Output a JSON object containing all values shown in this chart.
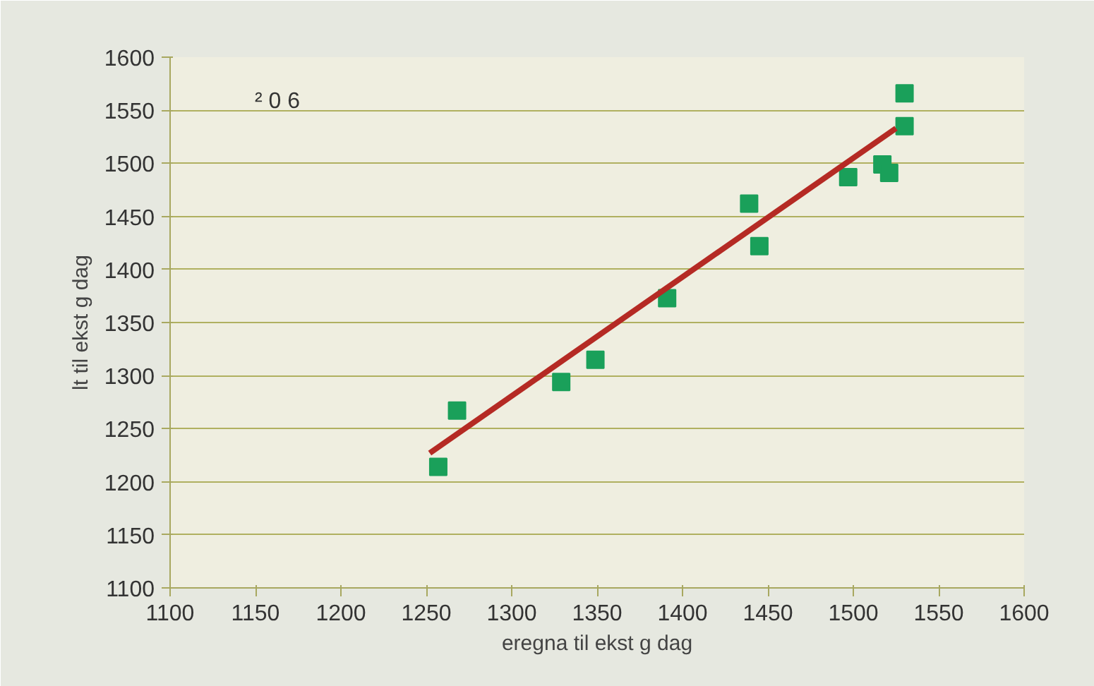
{
  "chart_data": {
    "type": "scatter",
    "xlabel": "eregna til ekst g dag",
    "ylabel": "lt til ekst g dag",
    "annotations": [
      "² 0 6"
    ],
    "xlim": [
      1100,
      1600
    ],
    "xticks": [
      1100,
      1150,
      1200,
      1250,
      1300,
      1350,
      1400,
      1450,
      1500,
      1550,
      1600
    ],
    "ylim": [
      1100,
      1600
    ],
    "yticks": [
      1100,
      1150,
      1200,
      1250,
      1300,
      1350,
      1400,
      1450,
      1500,
      1550,
      1600
    ],
    "grid": "y",
    "series": [
      {
        "marker": "square",
        "color": "#1aa05a",
        "x": [
          1257,
          1268,
          1329,
          1349,
          1391,
          1439,
          1445,
          1497,
          1517,
          1521,
          1530,
          1530
        ],
        "values": [
          1214,
          1267,
          1294,
          1315,
          1373,
          1462,
          1422,
          1487,
          1499,
          1491,
          1535,
          1566
        ]
      },
      {
        "type": "line",
        "color": "#b52a24",
        "x": [
          1252,
          1525
        ],
        "values": [
          1227,
          1533
        ]
      }
    ]
  }
}
